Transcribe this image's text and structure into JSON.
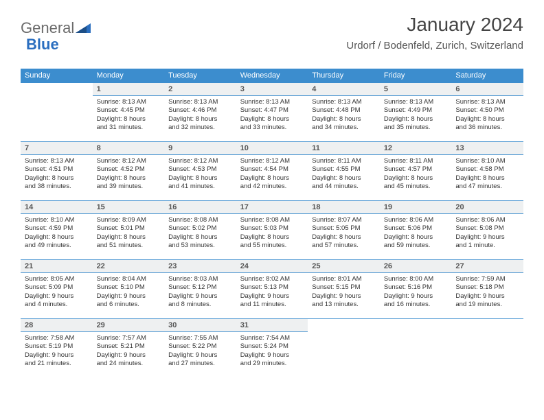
{
  "logo": {
    "part1": "General",
    "part2": "Blue"
  },
  "header": {
    "title": "January 2024",
    "subtitle": "Urdorf / Bodenfeld, Zurich, Switzerland"
  },
  "colors": {
    "header_blue": "#3c8dce",
    "daynum_bg": "#eef0f1",
    "text": "#333333",
    "logo_gray": "#6b6b6b",
    "logo_blue": "#2a6ebf"
  },
  "weekdays": [
    "Sunday",
    "Monday",
    "Tuesday",
    "Wednesday",
    "Thursday",
    "Friday",
    "Saturday"
  ],
  "weeks": [
    [
      null,
      {
        "n": "1",
        "sr": "Sunrise: 8:13 AM",
        "ss": "Sunset: 4:45 PM",
        "d1": "Daylight: 8 hours",
        "d2": "and 31 minutes."
      },
      {
        "n": "2",
        "sr": "Sunrise: 8:13 AM",
        "ss": "Sunset: 4:46 PM",
        "d1": "Daylight: 8 hours",
        "d2": "and 32 minutes."
      },
      {
        "n": "3",
        "sr": "Sunrise: 8:13 AM",
        "ss": "Sunset: 4:47 PM",
        "d1": "Daylight: 8 hours",
        "d2": "and 33 minutes."
      },
      {
        "n": "4",
        "sr": "Sunrise: 8:13 AM",
        "ss": "Sunset: 4:48 PM",
        "d1": "Daylight: 8 hours",
        "d2": "and 34 minutes."
      },
      {
        "n": "5",
        "sr": "Sunrise: 8:13 AM",
        "ss": "Sunset: 4:49 PM",
        "d1": "Daylight: 8 hours",
        "d2": "and 35 minutes."
      },
      {
        "n": "6",
        "sr": "Sunrise: 8:13 AM",
        "ss": "Sunset: 4:50 PM",
        "d1": "Daylight: 8 hours",
        "d2": "and 36 minutes."
      }
    ],
    [
      {
        "n": "7",
        "sr": "Sunrise: 8:13 AM",
        "ss": "Sunset: 4:51 PM",
        "d1": "Daylight: 8 hours",
        "d2": "and 38 minutes."
      },
      {
        "n": "8",
        "sr": "Sunrise: 8:12 AM",
        "ss": "Sunset: 4:52 PM",
        "d1": "Daylight: 8 hours",
        "d2": "and 39 minutes."
      },
      {
        "n": "9",
        "sr": "Sunrise: 8:12 AM",
        "ss": "Sunset: 4:53 PM",
        "d1": "Daylight: 8 hours",
        "d2": "and 41 minutes."
      },
      {
        "n": "10",
        "sr": "Sunrise: 8:12 AM",
        "ss": "Sunset: 4:54 PM",
        "d1": "Daylight: 8 hours",
        "d2": "and 42 minutes."
      },
      {
        "n": "11",
        "sr": "Sunrise: 8:11 AM",
        "ss": "Sunset: 4:55 PM",
        "d1": "Daylight: 8 hours",
        "d2": "and 44 minutes."
      },
      {
        "n": "12",
        "sr": "Sunrise: 8:11 AM",
        "ss": "Sunset: 4:57 PM",
        "d1": "Daylight: 8 hours",
        "d2": "and 45 minutes."
      },
      {
        "n": "13",
        "sr": "Sunrise: 8:10 AM",
        "ss": "Sunset: 4:58 PM",
        "d1": "Daylight: 8 hours",
        "d2": "and 47 minutes."
      }
    ],
    [
      {
        "n": "14",
        "sr": "Sunrise: 8:10 AM",
        "ss": "Sunset: 4:59 PM",
        "d1": "Daylight: 8 hours",
        "d2": "and 49 minutes."
      },
      {
        "n": "15",
        "sr": "Sunrise: 8:09 AM",
        "ss": "Sunset: 5:01 PM",
        "d1": "Daylight: 8 hours",
        "d2": "and 51 minutes."
      },
      {
        "n": "16",
        "sr": "Sunrise: 8:08 AM",
        "ss": "Sunset: 5:02 PM",
        "d1": "Daylight: 8 hours",
        "d2": "and 53 minutes."
      },
      {
        "n": "17",
        "sr": "Sunrise: 8:08 AM",
        "ss": "Sunset: 5:03 PM",
        "d1": "Daylight: 8 hours",
        "d2": "and 55 minutes."
      },
      {
        "n": "18",
        "sr": "Sunrise: 8:07 AM",
        "ss": "Sunset: 5:05 PM",
        "d1": "Daylight: 8 hours",
        "d2": "and 57 minutes."
      },
      {
        "n": "19",
        "sr": "Sunrise: 8:06 AM",
        "ss": "Sunset: 5:06 PM",
        "d1": "Daylight: 8 hours",
        "d2": "and 59 minutes."
      },
      {
        "n": "20",
        "sr": "Sunrise: 8:06 AM",
        "ss": "Sunset: 5:08 PM",
        "d1": "Daylight: 9 hours",
        "d2": "and 1 minute."
      }
    ],
    [
      {
        "n": "21",
        "sr": "Sunrise: 8:05 AM",
        "ss": "Sunset: 5:09 PM",
        "d1": "Daylight: 9 hours",
        "d2": "and 4 minutes."
      },
      {
        "n": "22",
        "sr": "Sunrise: 8:04 AM",
        "ss": "Sunset: 5:10 PM",
        "d1": "Daylight: 9 hours",
        "d2": "and 6 minutes."
      },
      {
        "n": "23",
        "sr": "Sunrise: 8:03 AM",
        "ss": "Sunset: 5:12 PM",
        "d1": "Daylight: 9 hours",
        "d2": "and 8 minutes."
      },
      {
        "n": "24",
        "sr": "Sunrise: 8:02 AM",
        "ss": "Sunset: 5:13 PM",
        "d1": "Daylight: 9 hours",
        "d2": "and 11 minutes."
      },
      {
        "n": "25",
        "sr": "Sunrise: 8:01 AM",
        "ss": "Sunset: 5:15 PM",
        "d1": "Daylight: 9 hours",
        "d2": "and 13 minutes."
      },
      {
        "n": "26",
        "sr": "Sunrise: 8:00 AM",
        "ss": "Sunset: 5:16 PM",
        "d1": "Daylight: 9 hours",
        "d2": "and 16 minutes."
      },
      {
        "n": "27",
        "sr": "Sunrise: 7:59 AM",
        "ss": "Sunset: 5:18 PM",
        "d1": "Daylight: 9 hours",
        "d2": "and 19 minutes."
      }
    ],
    [
      {
        "n": "28",
        "sr": "Sunrise: 7:58 AM",
        "ss": "Sunset: 5:19 PM",
        "d1": "Daylight: 9 hours",
        "d2": "and 21 minutes."
      },
      {
        "n": "29",
        "sr": "Sunrise: 7:57 AM",
        "ss": "Sunset: 5:21 PM",
        "d1": "Daylight: 9 hours",
        "d2": "and 24 minutes."
      },
      {
        "n": "30",
        "sr": "Sunrise: 7:55 AM",
        "ss": "Sunset: 5:22 PM",
        "d1": "Daylight: 9 hours",
        "d2": "and 27 minutes."
      },
      {
        "n": "31",
        "sr": "Sunrise: 7:54 AM",
        "ss": "Sunset: 5:24 PM",
        "d1": "Daylight: 9 hours",
        "d2": "and 29 minutes."
      },
      null,
      null,
      null
    ]
  ]
}
